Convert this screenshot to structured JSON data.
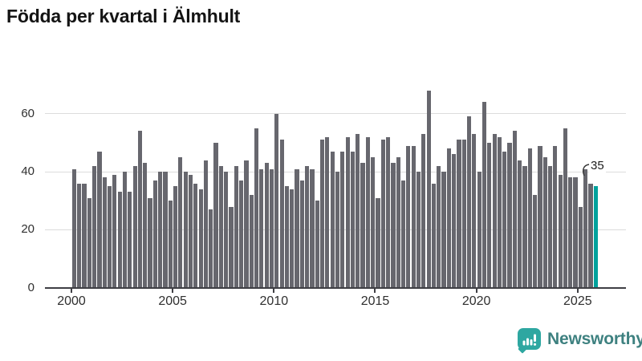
{
  "title": "Födda per kvartal i Älmhult",
  "annotation": {
    "last_value_label": "35"
  },
  "brand": {
    "name": "Newsworthy",
    "icon": "bar-chart-speech-bubble-icon"
  },
  "colors": {
    "bar": "#67676e",
    "highlight": "#00a29d",
    "grid": "#dcdcdc",
    "axis": "#3f3f44",
    "tick_text": "#2f2f2f",
    "title_text": "#141414",
    "brand_bubble": "#2ea7a1",
    "brand_text": "#3e8180"
  },
  "chart_data": {
    "type": "bar",
    "title": "Födda per kvartal i Älmhult",
    "xlabel": "",
    "ylabel": "",
    "x_start": "2000-Q1",
    "frequency": "quarterly",
    "x_tick_labels": [
      "2000",
      "2005",
      "2010",
      "2015",
      "2020",
      "2025"
    ],
    "y_ticks": [
      0,
      20,
      40,
      60
    ],
    "ylim": [
      0,
      70
    ],
    "grid": "horizontal",
    "legend": "none",
    "highlight_last_bar": true,
    "last_bar_label": "35",
    "series": [
      {
        "name": "Födda per kvartal",
        "years": [
          {
            "year": 2000,
            "values": [
              41,
              36,
              36,
              31
            ]
          },
          {
            "year": 2001,
            "values": [
              42,
              47,
              38,
              35
            ]
          },
          {
            "year": 2002,
            "values": [
              39,
              33,
              40,
              33
            ]
          },
          {
            "year": 2003,
            "values": [
              42,
              54,
              43,
              31
            ]
          },
          {
            "year": 2004,
            "values": [
              37,
              40,
              40,
              30
            ]
          },
          {
            "year": 2005,
            "values": [
              35,
              45,
              40,
              39
            ]
          },
          {
            "year": 2006,
            "values": [
              36,
              34,
              44,
              27
            ]
          },
          {
            "year": 2007,
            "values": [
              50,
              42,
              40,
              28
            ]
          },
          {
            "year": 2008,
            "values": [
              42,
              37,
              44,
              32
            ]
          },
          {
            "year": 2009,
            "values": [
              55,
              41,
              43,
              41
            ]
          },
          {
            "year": 2010,
            "values": [
              60,
              51,
              35,
              34
            ]
          },
          {
            "year": 2011,
            "values": [
              41,
              37,
              42,
              41
            ]
          },
          {
            "year": 2012,
            "values": [
              30,
              51,
              52,
              47
            ]
          },
          {
            "year": 2013,
            "values": [
              40,
              47,
              52,
              47
            ]
          },
          {
            "year": 2014,
            "values": [
              53,
              43,
              52,
              45
            ]
          },
          {
            "year": 2015,
            "values": [
              31,
              51,
              52,
              43
            ]
          },
          {
            "year": 2016,
            "values": [
              45,
              37,
              49,
              49
            ]
          },
          {
            "year": 2017,
            "values": [
              40,
              53,
              68,
              36
            ]
          },
          {
            "year": 2018,
            "values": [
              42,
              40,
              48,
              46
            ]
          },
          {
            "year": 2019,
            "values": [
              51,
              51,
              59,
              53
            ]
          },
          {
            "year": 2020,
            "values": [
              40,
              64,
              50,
              53
            ]
          },
          {
            "year": 2021,
            "values": [
              52,
              47,
              50,
              54
            ]
          },
          {
            "year": 2022,
            "values": [
              44,
              42,
              48,
              32
            ]
          },
          {
            "year": 2023,
            "values": [
              49,
              45,
              42,
              49
            ]
          },
          {
            "year": 2024,
            "values": [
              39,
              55,
              38,
              38
            ]
          },
          {
            "year": 2025,
            "values": [
              28,
              41,
              36,
              35
            ]
          }
        ]
      }
    ]
  }
}
